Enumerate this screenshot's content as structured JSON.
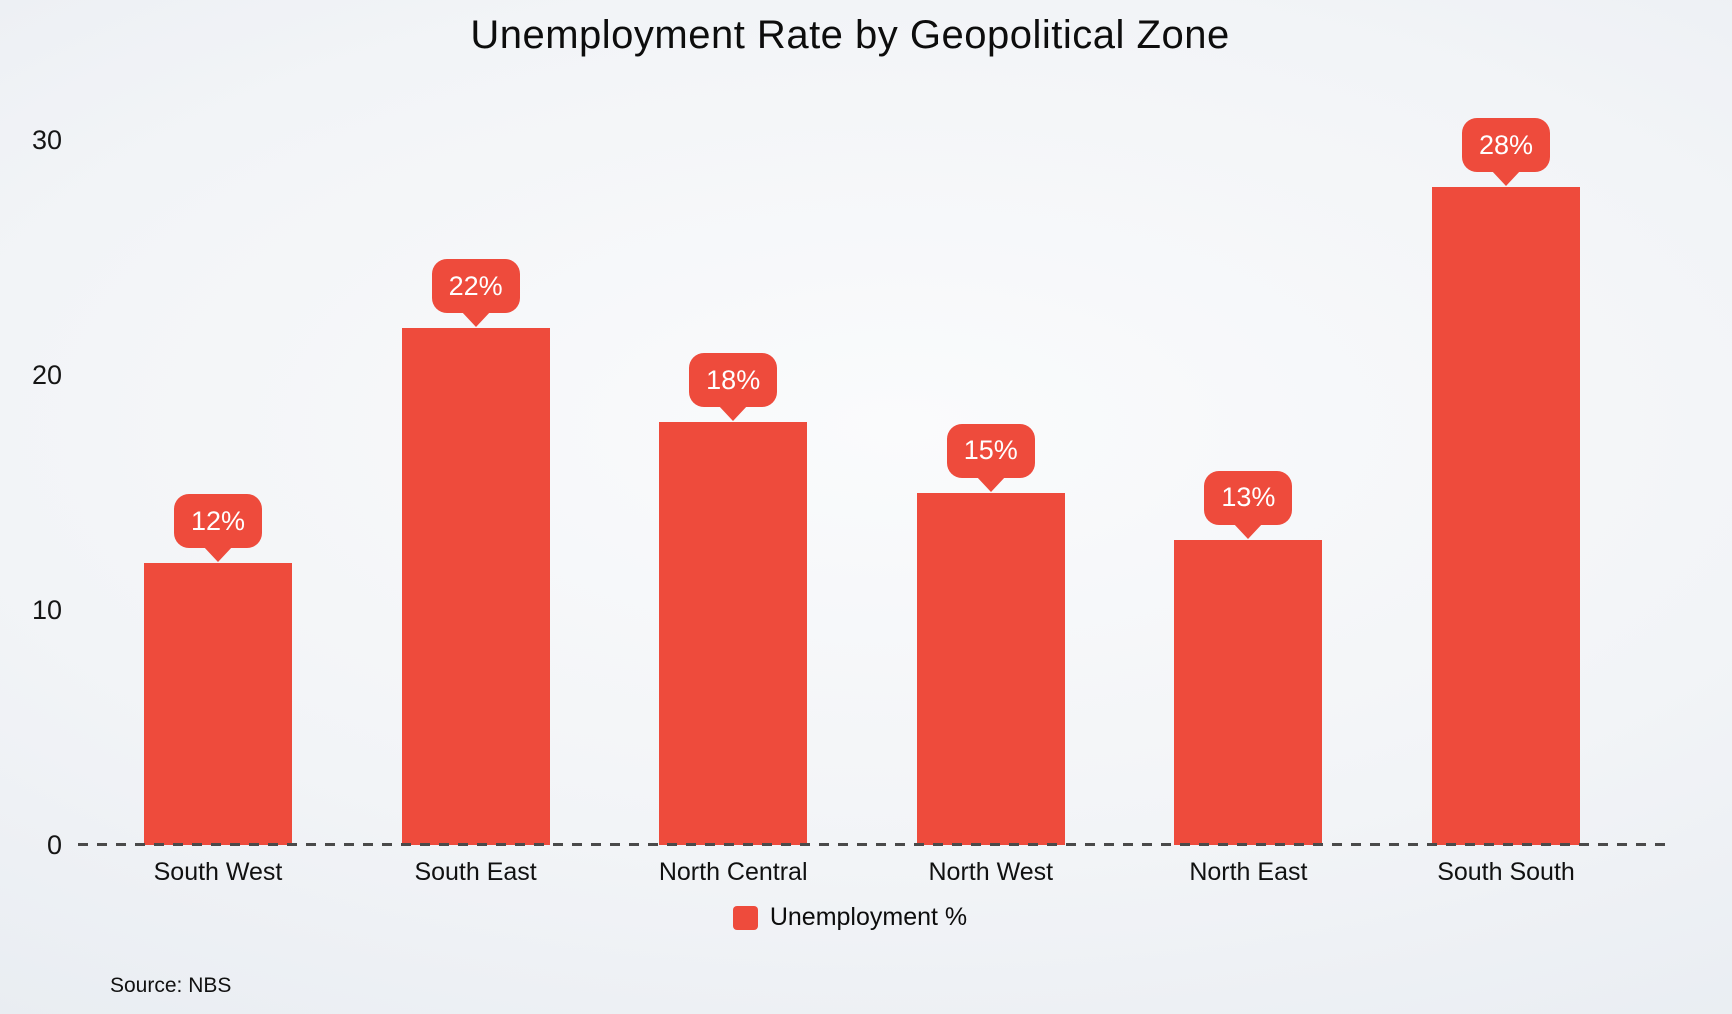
{
  "page": {
    "title": "Unemployment Rate by Geopolitical Zone",
    "source_note": "Source: NBS"
  },
  "colors": {
    "bar": "#ee4b3c",
    "bubble_text": "#ffffff",
    "axis_text": "#151515",
    "baseline": "#4a4a4a",
    "background_edge": "#e7ebf0",
    "background_center": "#fafbfc"
  },
  "legend": {
    "items": [
      {
        "label": "Unemployment %",
        "color": "#ee4b3c"
      }
    ]
  },
  "y_axis": {
    "tick_values": [
      0,
      10,
      20,
      30
    ],
    "tick_labels": [
      "0",
      "10",
      "20",
      "30"
    ]
  },
  "chart_data": {
    "type": "bar",
    "title": "Unemployment Rate by Geopolitical Zone",
    "categories": [
      "South West",
      "South East",
      "North Central",
      "North West",
      "North East",
      "South South"
    ],
    "values": [
      12,
      22,
      18,
      15,
      13,
      28
    ],
    "data_labels": [
      "12%",
      "22%",
      "18%",
      "15%",
      "13%",
      "28%"
    ],
    "series_name": "Unemployment %",
    "xlabel": "",
    "ylabel": "",
    "ylim": [
      0,
      32
    ],
    "yticks": [
      0,
      10,
      20,
      30
    ],
    "grid": false,
    "legend_position": "bottom",
    "bar_color": "#ee4b3c",
    "annotation_style": "callout bubble with percentage above each bar",
    "source": "Source: NBS"
  }
}
